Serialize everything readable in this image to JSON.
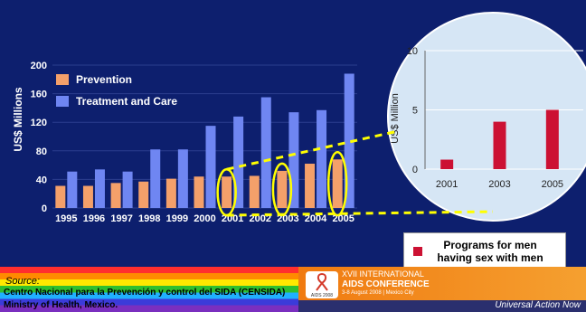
{
  "chart_data": [
    {
      "type": "bar",
      "ylabel": "US$ Millions",
      "ylim": [
        0,
        200
      ],
      "yticks": [
        0,
        40,
        80,
        120,
        160,
        200
      ],
      "categories": [
        "1995",
        "1996",
        "1997",
        "1998",
        "1999",
        "2000",
        "2001",
        "2002",
        "2003",
        "2004",
        "2005"
      ],
      "series": [
        {
          "name": "Prevention",
          "color": "#f4a06a",
          "values": [
            31,
            31,
            35,
            37,
            41,
            44,
            44,
            45,
            52,
            62,
            68
          ]
        },
        {
          "name": "Treatment and Care",
          "color": "#6f86f2",
          "values": [
            51,
            54,
            51,
            82,
            82,
            115,
            128,
            155,
            134,
            137,
            188
          ]
        }
      ],
      "legend": "top-left",
      "highlighted_categories": [
        "2001",
        "2003",
        "2005"
      ]
    },
    {
      "type": "bar",
      "ylabel": "US$ Million",
      "ylim": [
        0,
        10
      ],
      "yticks": [
        0,
        5,
        10
      ],
      "categories": [
        "2001",
        "2003",
        "2005"
      ],
      "series": [
        {
          "name": "Programs for men having sex with men",
          "color": "#cc1133",
          "values": [
            0.8,
            4.0,
            5.0
          ]
        }
      ]
    }
  ],
  "legend_msm": {
    "line1": "Programs for men",
    "line2": "having sex with men",
    "color": "#cc1133"
  },
  "footer": {
    "source_label": "Source:",
    "source_line1": "Centro Nacional para la Prevención y control del SIDA (CENSIDA)",
    "source_line2": "Ministry of Health, Mexico.",
    "conf_line1": "XVII INTERNATIONAL",
    "conf_line2": "AIDS CONFERENCE",
    "conf_line3": "3-8 August 2008 | Mexico City",
    "conf_logo": "AIDS 2008",
    "tagline": "Universal Action Now"
  }
}
